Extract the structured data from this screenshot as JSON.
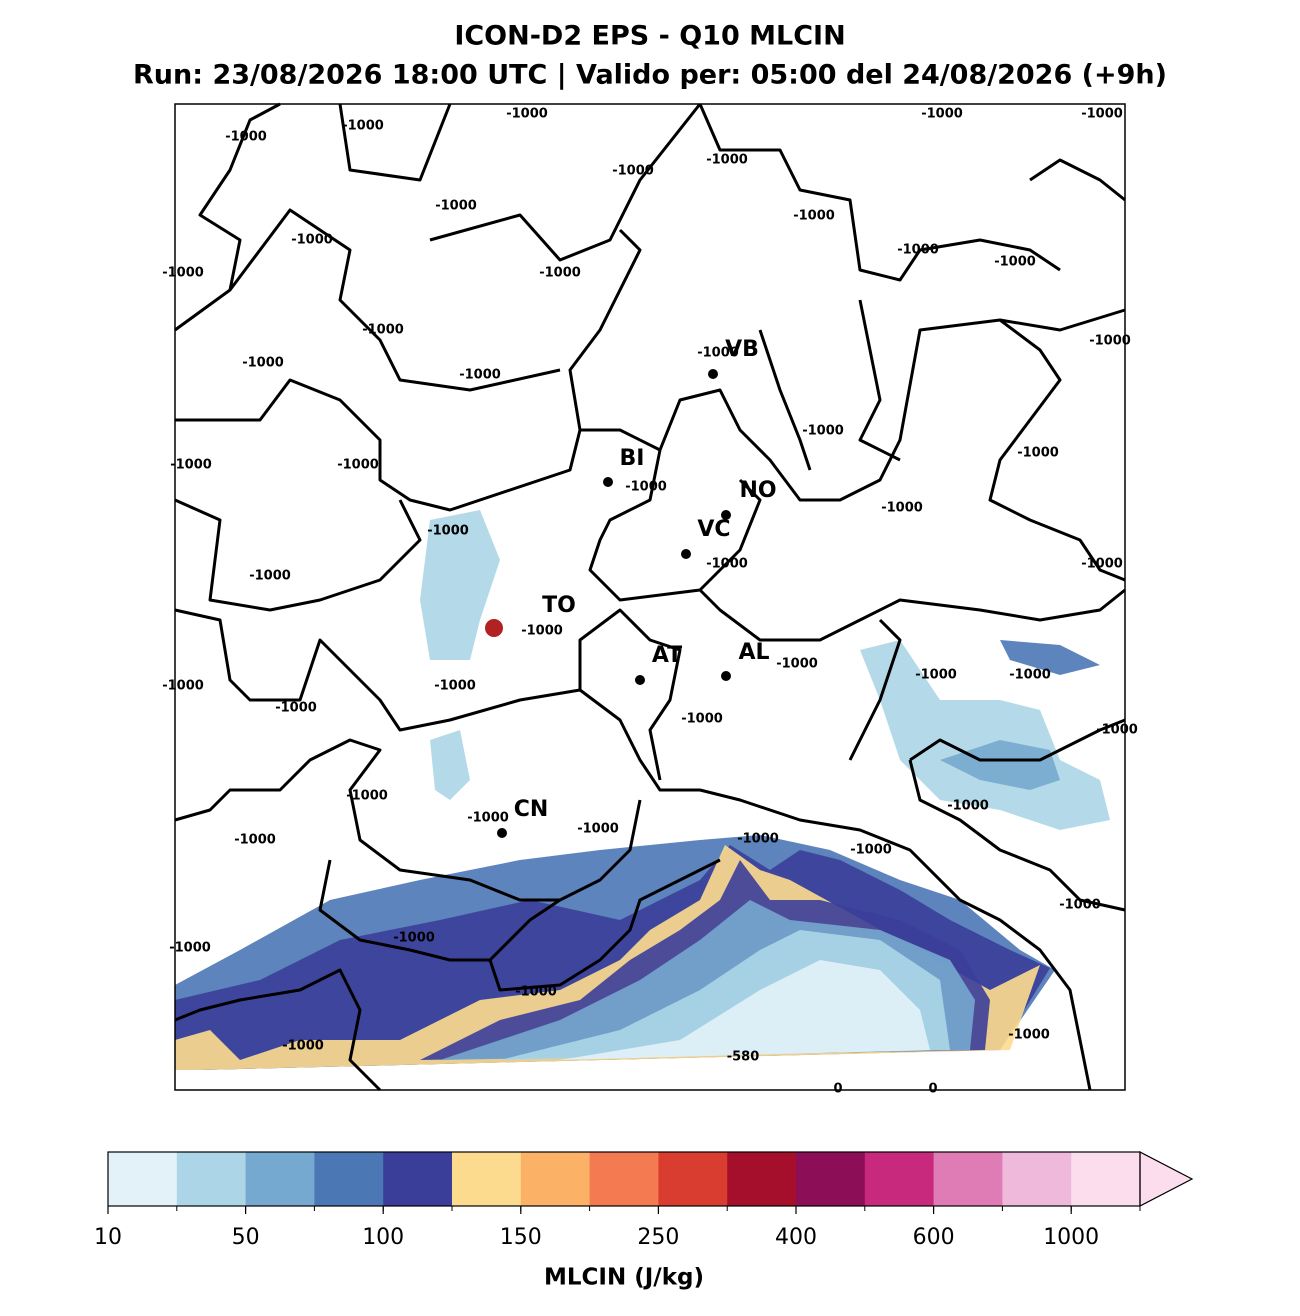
{
  "title": "ICON-D2 EPS - Q10 MLCIN",
  "subtitle": "Run: 23/08/2026 18:00 UTC | Valido per: 05:00 del 24/08/2026 (+9h)",
  "cities": [
    "VB",
    "BI",
    "NO",
    "VC",
    "TO",
    "AT",
    "AL",
    "CN"
  ],
  "contour_labels": [
    "-1000",
    "-1000",
    "-1000",
    "-1000",
    "-1000",
    "-1000",
    "-1000",
    "-1000",
    "-1000",
    "-1000",
    "-1000",
    "-1000",
    "-1000",
    "-1000",
    "-1000",
    "-1000",
    "-1000",
    "-1000",
    "-1000",
    "-1000",
    "-1000",
    "-1000",
    "-1000",
    "-1000",
    "-1000",
    "-1000",
    "-1000",
    "-1000",
    "-1000",
    "-1000",
    "-1000",
    "-1000",
    "-1000",
    "-1000",
    "-1000",
    "-1000",
    "-1000",
    "-1000",
    "-1000",
    "-1000",
    "-1000",
    "-1000",
    "-1000",
    "-1000",
    "-1000",
    "-1000",
    "-1000",
    "-1000",
    "-1000",
    "-1000",
    "-1000",
    "-580",
    "0",
    "0"
  ],
  "colorbar": {
    "label": "MLCIN (J/kg)",
    "colors": [
      "#e2f2f8",
      "#acd6e7",
      "#75a9cf",
      "#4b77b5",
      "#3b3e99",
      "#fddb8e",
      "#fbb166",
      "#f37a51",
      "#d93d30",
      "#a60f2c",
      "#8c0e56",
      "#c9297d",
      "#df7cb5",
      "#efb9dc",
      "#fbdded"
    ],
    "ticks": [
      10,
      50,
      100,
      150,
      250,
      400,
      600,
      1000
    ]
  }
}
